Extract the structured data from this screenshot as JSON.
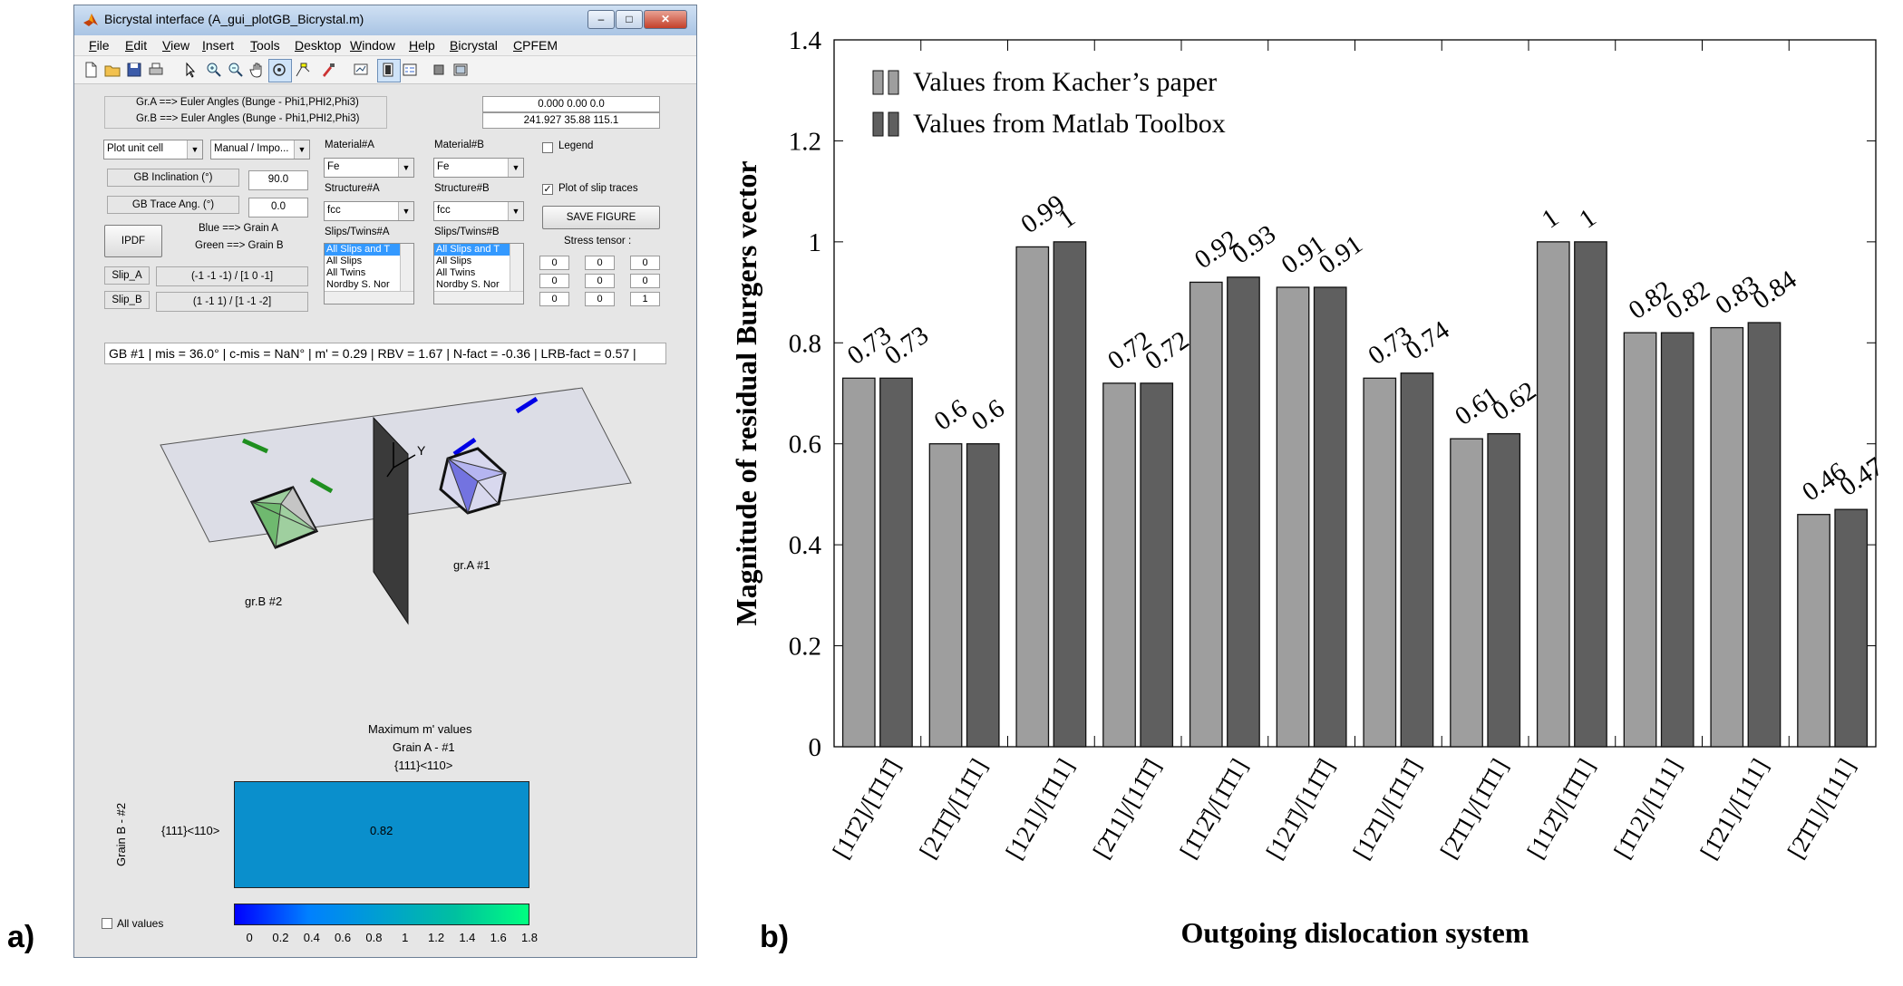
{
  "panel_labels": {
    "a": "a)",
    "b": "b)"
  },
  "window": {
    "title": "Bicrystal interface (A_gui_plotGB_Bicrystal.m)",
    "controls": {
      "minimize": "–",
      "maximize": "□",
      "close": "✕"
    }
  },
  "menu": [
    "File",
    "Edit",
    "View",
    "Insert",
    "Tools",
    "Desktop",
    "Window",
    "Help",
    "Bicrystal",
    "CPFEM"
  ],
  "toolbar_icons": [
    "new-file-icon",
    "open-folder-icon",
    "save-icon",
    "print-icon",
    "pointer-icon",
    "zoom-in-icon",
    "zoom-out-icon",
    "pan-hand-icon",
    "rotate-3d-icon",
    "data-cursor-icon",
    "brush-icon",
    "link-plot-icon",
    "colorbar-icon",
    "legend-icon",
    "hide-plot-tools-icon",
    "show-plot-tools-icon"
  ],
  "euler": {
    "label_a": "Gr.A ==> Euler Angles (Bunge - Phi1,PHI2,Phi3)",
    "label_b": "Gr.B ==> Euler Angles (Bunge - Phi1,PHI2,Phi3)",
    "value_a": "0.000  0.00  0.0",
    "value_b": "241.927  35.88  115.1"
  },
  "plot_controls": {
    "plot_type": "Plot unit cell",
    "mode": "Manual / Impo...",
    "gb_inclination_label": "GB Inclination (°)",
    "gb_inclination_value": "90.0",
    "gb_trace_label": "GB Trace Ang. (°)",
    "gb_trace_value": "0.0",
    "ipdf_button": "IPDF",
    "blue_label": "Blue ==> Grain A",
    "green_label": "Green ==> Grain B",
    "slip_a_label": "Slip_A",
    "slip_a_value": "(-1 -1 -1) / [1  0 -1]",
    "slip_b_label": "Slip_B",
    "slip_b_value": "(1 -1  1) / [1 -1 -2]"
  },
  "grain_a": {
    "material_label": "Material#A",
    "material": "Fe",
    "structure_label": "Structure#A",
    "structure": "fcc",
    "slips_label": "Slips/Twins#A",
    "slips_items": [
      "All Slips and T",
      "All Slips",
      "All Twins",
      "Nordby S. Nor"
    ]
  },
  "grain_b": {
    "material_label": "Material#B",
    "material": "Fe",
    "structure_label": "Structure#B",
    "structure": "fcc",
    "slips_label": "Slips/Twins#B",
    "slips_items": [
      "All Slips and T",
      "All Slips",
      "All Twins",
      "Nordby S. Nor"
    ]
  },
  "right_controls": {
    "legend_label": "Legend",
    "legend_checked": false,
    "slip_traces_label": "Plot of slip traces",
    "slip_traces_checked": true,
    "save_button": "SAVE FIGURE",
    "stress_label": "Stress tensor :",
    "stress_tensor": [
      [
        "0",
        "0",
        "0"
      ],
      [
        "0",
        "0",
        "0"
      ],
      [
        "0",
        "0",
        "1"
      ]
    ]
  },
  "gb_info": "GB #1  | mis = 36.0° | c-mis = NaN° | m' = 0.29 | RBV = 1.67 | N-fact = -0.36 | LRB-fact = 0.57 |",
  "scene": {
    "axis_label": "Y",
    "grain_a_label": "gr.A #1",
    "grain_b_label": "gr.B #2",
    "colors": {
      "grain_a": "#0000e6",
      "grain_b": "#1f8f1f",
      "gb_plane": "#2b2b2b"
    }
  },
  "heatmap": {
    "title": "Maximum m' values",
    "subtitle": "Grain A - #1",
    "x_tick": "{111}<110>",
    "y_title": "Grain B - #2",
    "y_tick": "{111}<110>",
    "value": "0.82",
    "cell_color": "#0a8fcc",
    "colorbar_ticks": [
      "0",
      "0.2",
      "0.4",
      "0.6",
      "0.8",
      "1",
      "1.2",
      "1.4",
      "1.6",
      "1.8"
    ],
    "all_values_label": "All values"
  },
  "chart_data": {
    "type": "bar",
    "xlabel": "Outgoing dislocation system",
    "ylabel": "Magnitude of residual Burgers vector",
    "ylim": [
      0,
      1.4
    ],
    "yticks": [
      "0",
      "0.2",
      "0.4",
      "0.6",
      "0.8",
      "1",
      "1.2",
      "1.4"
    ],
    "categories": [
      "[11̄2]/[1̄11̄]",
      "[21̄1̄]/[11̄1]",
      "[121]/[1̄11]",
      "[2̄11]/[11̄1̄]",
      "[1̄12̄]/[1̄1̄1]",
      "[121̄]/[11̄1̄]",
      "[12̄1]/[1̄11̄]",
      "[2̄1̄1]/[1̄1̄1]",
      "[112̄]/[1̄1̄1]",
      "[1̄12]/[111]",
      "[1̄21]/[111]",
      "[2̄1̄1]/[111]"
    ],
    "series": [
      {
        "name": "Values from Kacher’s paper",
        "color": "#9e9e9e",
        "values": [
          0.73,
          0.6,
          0.99,
          0.72,
          0.92,
          0.91,
          0.73,
          0.61,
          1,
          0.82,
          0.83,
          0.46
        ]
      },
      {
        "name": "Values from Matlab Toolbox",
        "color": "#5f5f5f",
        "values": [
          0.73,
          0.6,
          1,
          0.72,
          0.93,
          0.91,
          0.74,
          0.62,
          1,
          0.82,
          0.84,
          0.47
        ]
      }
    ],
    "grid": false,
    "legend_position": "top-left"
  }
}
